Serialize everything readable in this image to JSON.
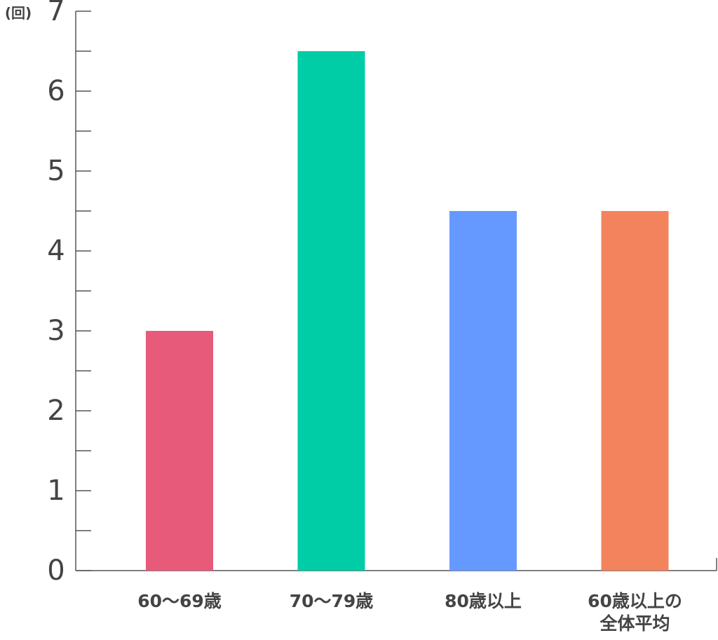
{
  "chart_data": {
    "type": "bar",
    "y_unit_label": "(回)",
    "categories": [
      "60〜69歳",
      "70〜79歳",
      "80歳以上",
      "60歳以上の全体平均"
    ],
    "values": [
      3,
      6.5,
      4.5,
      4.5
    ],
    "colors": [
      "#e85a7a",
      "#00cca6",
      "#6699ff",
      "#f3835d"
    ],
    "ylim": [
      0,
      7
    ],
    "yticks": [
      0,
      1,
      2,
      3,
      4,
      5,
      6,
      7
    ],
    "minor_yticks": [
      0.5,
      1.5,
      2.5,
      3.5,
      4.5,
      5.5,
      6.5
    ]
  }
}
